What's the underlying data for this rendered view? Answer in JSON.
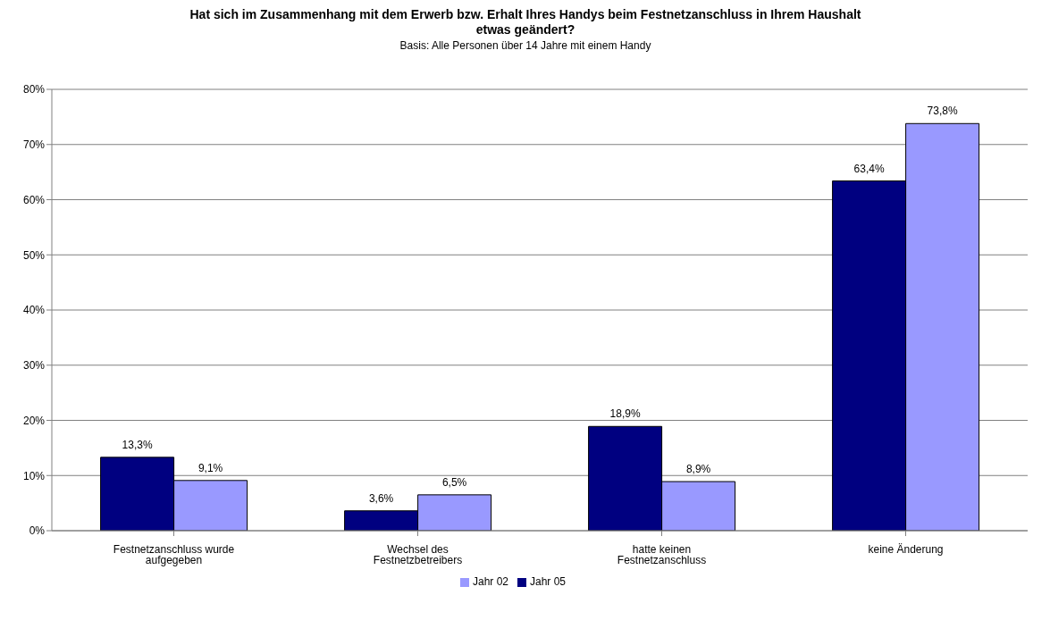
{
  "chart_data": {
    "type": "bar",
    "title": "Hat sich im Zusammenhang mit dem Erwerb bzw. Erhalt Ihres Handys beim Festnetzanschluss in Ihrem Haushalt etwas geändert?",
    "subtitle": "Basis: Alle Personen über 14 Jahre mit einem Handy",
    "categories": [
      "Festnetzanschluss wurde aufgegeben",
      "Wechsel des Festnetzbetreibers",
      "hatte keinen Festnetzanschluss",
      "keine Änderung"
    ],
    "series": [
      {
        "name": "Jahr 05",
        "color": "#000080",
        "values": [
          13.3,
          3.6,
          18.9,
          63.4
        ],
        "value_labels": [
          "13,3%",
          "3,6%",
          "18,9%",
          "63,4%"
        ]
      },
      {
        "name": "Jahr 02",
        "color": "#9999ff",
        "values": [
          9.1,
          6.5,
          8.9,
          73.8
        ],
        "value_labels": [
          "9,1%",
          "6,5%",
          "8,9%",
          "73,8%"
        ]
      }
    ],
    "ylim": [
      0,
      80
    ],
    "yticks": [
      {
        "value": 0,
        "label": "0%"
      },
      {
        "value": 10,
        "label": "10%"
      },
      {
        "value": 20,
        "label": "20%"
      },
      {
        "value": 30,
        "label": "30%"
      },
      {
        "value": 40,
        "label": "40%"
      },
      {
        "value": 50,
        "label": "50%"
      },
      {
        "value": 60,
        "label": "60%"
      },
      {
        "value": 70,
        "label": "70%"
      },
      {
        "value": 80,
        "label": "80%"
      }
    ],
    "grid": "y",
    "legend": "bottom"
  }
}
